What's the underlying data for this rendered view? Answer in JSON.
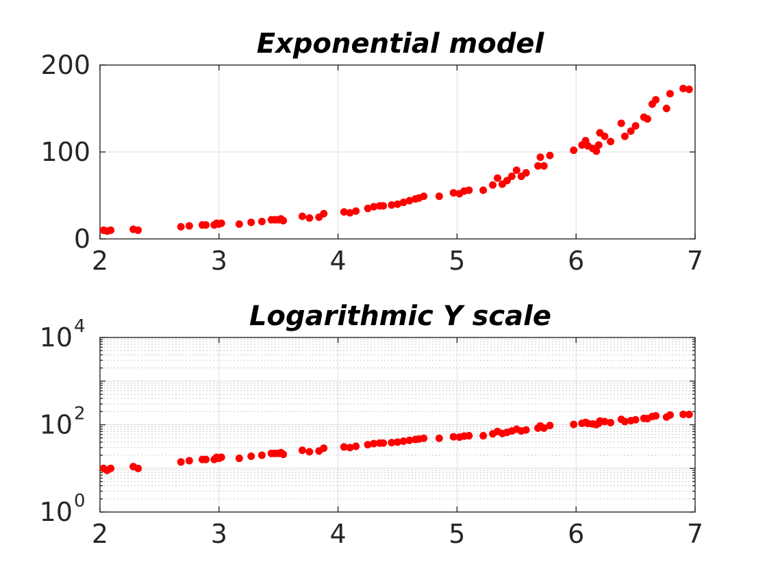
{
  "chart_data": [
    {
      "type": "scatter",
      "title": "Exponential model",
      "xlabel": "",
      "ylabel": "",
      "xlim": [
        2,
        7
      ],
      "ylim": [
        0,
        200
      ],
      "yscale": "linear",
      "xticks": [
        2,
        3,
        4,
        5,
        6,
        7
      ],
      "yticks": [
        0,
        100,
        200
      ],
      "xtick_labels": [
        "2",
        "3",
        "4",
        "5",
        "6",
        "7"
      ],
      "ytick_labels": [
        "0",
        "100",
        "200"
      ],
      "grid": true,
      "marker_color": "#ff0000",
      "series": [
        {
          "x": [
            2.03,
            2.06,
            2.09,
            2.28,
            2.32,
            2.68,
            2.75,
            2.86,
            2.89,
            2.96,
            2.98,
            3.0,
            3.02,
            3.17,
            3.27,
            3.36,
            3.44,
            3.47,
            3.5,
            3.52,
            3.54,
            3.7,
            3.76,
            3.84,
            3.88,
            4.05,
            4.1,
            4.15,
            4.25,
            4.3,
            4.35,
            4.38,
            4.45,
            4.5,
            4.55,
            4.6,
            4.65,
            4.68,
            4.72,
            4.85,
            4.97,
            5.02,
            5.06,
            5.1,
            5.22,
            5.3,
            5.34,
            5.38,
            5.42,
            5.46,
            5.5,
            5.54,
            5.58,
            5.68,
            5.7,
            5.73,
            5.78,
            5.98,
            6.05,
            6.08,
            6.1,
            6.14,
            6.17,
            6.19,
            6.2,
            6.24,
            6.29,
            6.38,
            6.41,
            6.46,
            6.5,
            6.57,
            6.6,
            6.64,
            6.67,
            6.76,
            6.79,
            6.9,
            6.95
          ],
          "y": [
            10,
            9,
            10,
            11,
            10,
            14,
            15,
            16,
            16,
            16,
            18,
            17,
            18,
            17,
            19,
            20,
            22,
            22,
            22,
            23,
            21,
            26,
            24,
            25,
            29,
            31,
            30,
            32,
            35,
            37,
            38,
            38,
            39,
            40,
            42,
            44,
            46,
            47,
            49,
            49,
            53,
            52,
            55,
            56,
            56,
            62,
            70,
            63,
            67,
            72,
            79,
            72,
            76,
            84,
            94,
            84,
            96,
            102,
            108,
            113,
            107,
            104,
            101,
            108,
            122,
            118,
            112,
            133,
            118,
            124,
            130,
            140,
            138,
            155,
            160,
            150,
            167,
            173,
            172
          ]
        }
      ]
    },
    {
      "type": "scatter",
      "title": "Logarithmic Y scale",
      "xlabel": "",
      "ylabel": "",
      "xlim": [
        2,
        7
      ],
      "ylim": [
        1,
        10000
      ],
      "yscale": "log",
      "xticks": [
        2,
        3,
        4,
        5,
        6,
        7
      ],
      "yticks": [
        1,
        100,
        10000
      ],
      "xtick_labels": [
        "2",
        "3",
        "4",
        "5",
        "6",
        "7"
      ],
      "ytick_labels": [
        {
          "base": "10",
          "exp": "0"
        },
        {
          "base": "10",
          "exp": "2"
        },
        {
          "base": "10",
          "exp": "4"
        }
      ],
      "grid": true,
      "minor_grid": true,
      "marker_color": "#ff0000",
      "series": [
        {
          "x": [
            2.03,
            2.06,
            2.09,
            2.28,
            2.32,
            2.68,
            2.75,
            2.86,
            2.89,
            2.96,
            2.98,
            3.0,
            3.02,
            3.17,
            3.27,
            3.36,
            3.44,
            3.47,
            3.5,
            3.52,
            3.54,
            3.7,
            3.76,
            3.84,
            3.88,
            4.05,
            4.1,
            4.15,
            4.25,
            4.3,
            4.35,
            4.38,
            4.45,
            4.5,
            4.55,
            4.6,
            4.65,
            4.68,
            4.72,
            4.85,
            4.97,
            5.02,
            5.06,
            5.1,
            5.22,
            5.3,
            5.34,
            5.38,
            5.42,
            5.46,
            5.5,
            5.54,
            5.58,
            5.68,
            5.7,
            5.73,
            5.78,
            5.98,
            6.05,
            6.08,
            6.1,
            6.14,
            6.17,
            6.19,
            6.2,
            6.24,
            6.29,
            6.38,
            6.41,
            6.46,
            6.5,
            6.57,
            6.6,
            6.64,
            6.67,
            6.76,
            6.79,
            6.9,
            6.95
          ],
          "y": [
            10,
            9,
            10,
            11,
            10,
            14,
            15,
            16,
            16,
            16,
            18,
            17,
            18,
            17,
            19,
            20,
            22,
            22,
            22,
            23,
            21,
            26,
            24,
            25,
            29,
            31,
            30,
            32,
            35,
            37,
            38,
            38,
            39,
            40,
            42,
            44,
            46,
            47,
            49,
            49,
            53,
            52,
            55,
            56,
            56,
            62,
            70,
            63,
            67,
            72,
            79,
            72,
            76,
            84,
            94,
            84,
            96,
            102,
            108,
            113,
            107,
            104,
            101,
            108,
            122,
            118,
            112,
            133,
            118,
            124,
            130,
            140,
            138,
            155,
            160,
            150,
            167,
            173,
            172
          ]
        }
      ]
    }
  ]
}
